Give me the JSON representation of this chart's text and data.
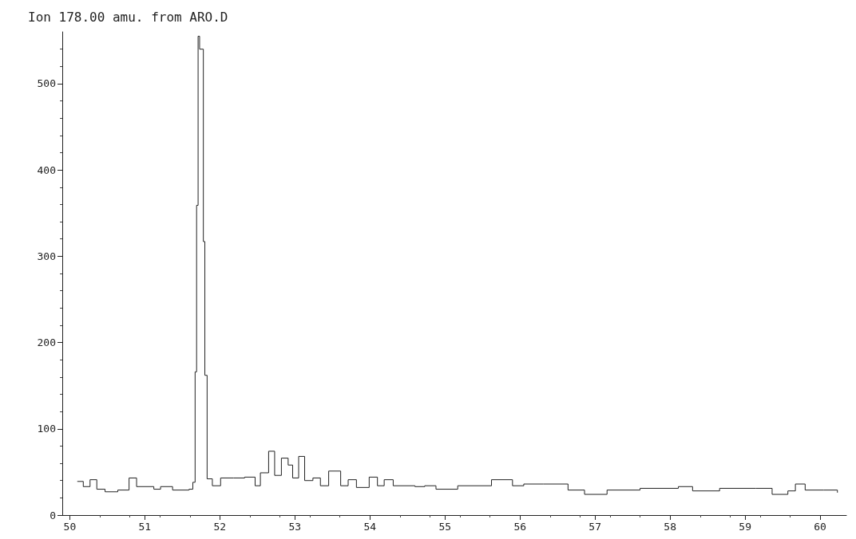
{
  "chart_data": {
    "type": "step",
    "title": "Ion 178.00 amu. from ARO.D",
    "x": [
      50.1,
      50.18,
      50.27,
      50.36,
      50.47,
      50.64,
      50.79,
      50.89,
      51.12,
      51.21,
      51.37,
      51.59,
      51.64,
      51.67,
      51.69,
      51.71,
      51.73,
      51.78,
      51.8,
      51.83,
      51.9,
      52.01,
      52.18,
      52.33,
      52.47,
      52.54,
      52.65,
      52.73,
      52.82,
      52.91,
      52.97,
      53.05,
      53.13,
      53.24,
      53.34,
      53.45,
      53.61,
      53.71,
      53.82,
      53.99,
      54.1,
      54.19,
      54.31,
      54.6,
      54.73,
      54.88,
      55.17,
      55.62,
      55.9,
      56.05,
      56.31,
      56.64,
      56.86,
      57.16,
      57.6,
      58.11,
      58.3,
      58.66,
      59.14,
      59.36,
      59.57,
      59.67,
      59.8,
      60.05,
      60.23
    ],
    "values": [
      39,
      33,
      41,
      30,
      27,
      29,
      43,
      33,
      30,
      33,
      29,
      30,
      38,
      166,
      359,
      555,
      540,
      317,
      162,
      42,
      34,
      43,
      43,
      44,
      34,
      49,
      74,
      46,
      66,
      58,
      43,
      68,
      40,
      43,
      34,
      51,
      34,
      41,
      32,
      44,
      34,
      41,
      34,
      33,
      34,
      30,
      34,
      41,
      34,
      36,
      36,
      29,
      24,
      29,
      31,
      33,
      28,
      31,
      31,
      24,
      28,
      36,
      29,
      29,
      26
    ],
    "color": "#222222",
    "xlim": [
      49.9,
      60.35
    ],
    "xticks": [
      50,
      51,
      52,
      53,
      54,
      55,
      56,
      57,
      58,
      59,
      60
    ],
    "ylim": [
      0,
      560
    ],
    "yticks": [
      0,
      100,
      200,
      300,
      400,
      500
    ],
    "grid": false,
    "marker": "none",
    "line_style": "solid"
  }
}
